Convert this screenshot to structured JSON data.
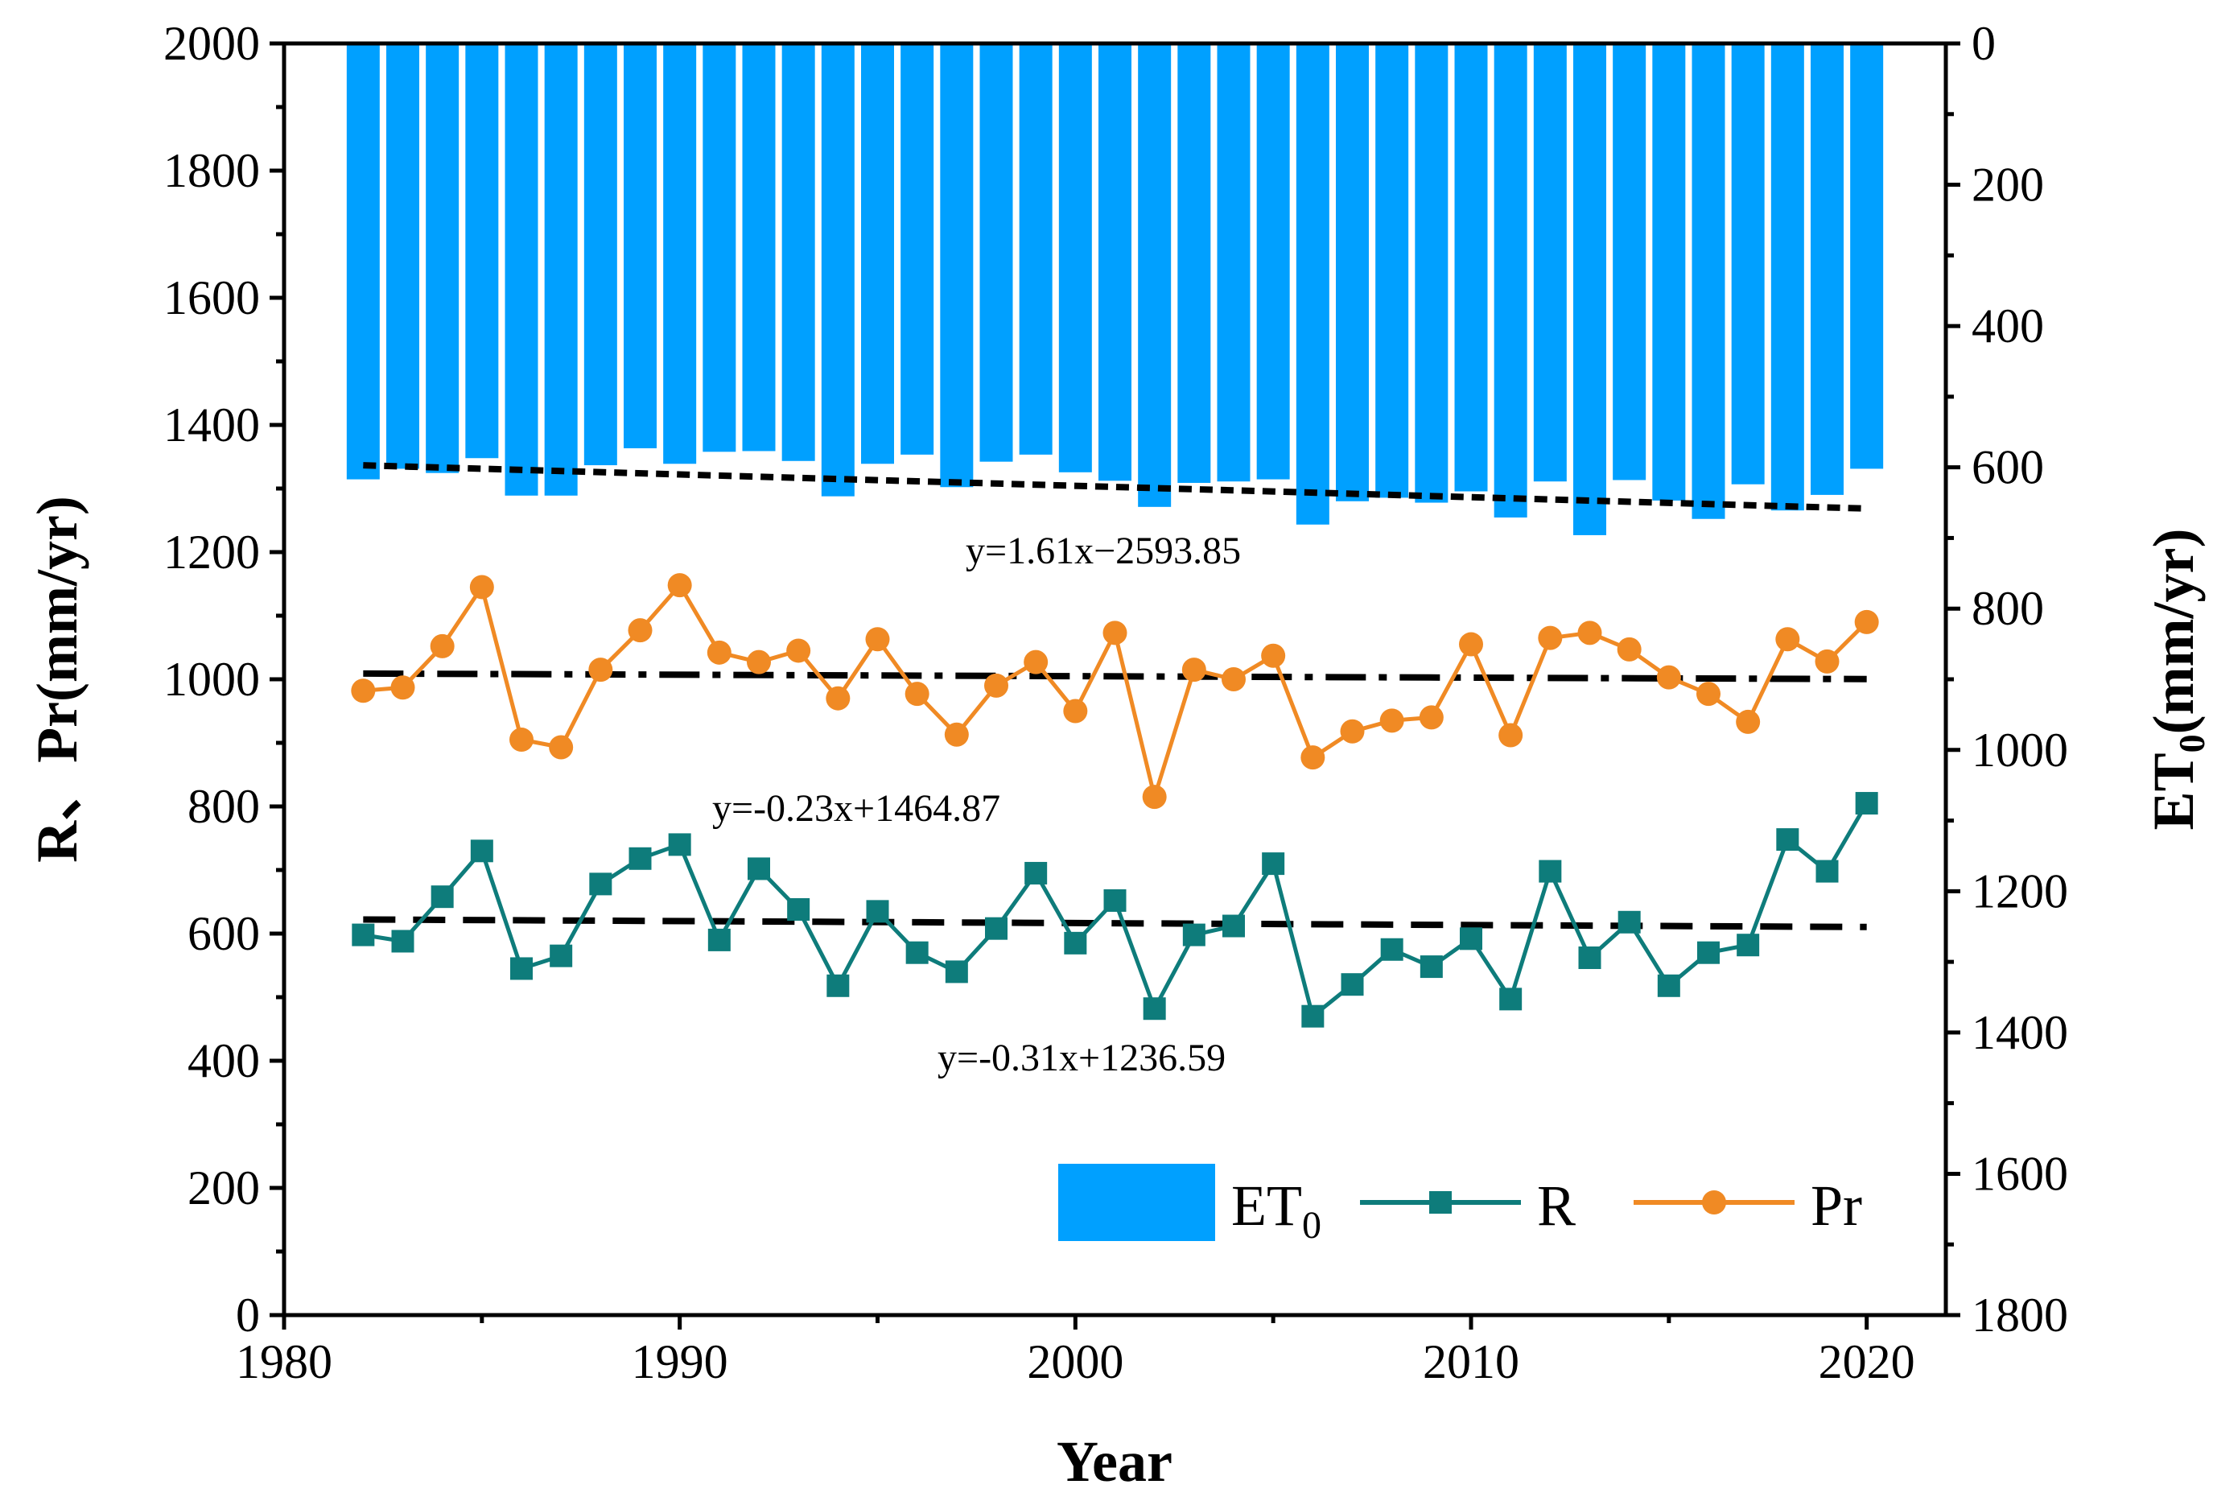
{
  "chart_data": {
    "type": "bar+line",
    "title": "",
    "xlabel": "Year",
    "ylabel_left": "R、Pr(mm/yr)",
    "ylabel_right": {
      "main": "ET",
      "sub": "0",
      "unit": "(mm/yr)"
    },
    "xlim": [
      1980,
      2022
    ],
    "xticks": [
      1980,
      1990,
      2000,
      2010,
      2020
    ],
    "ylim_left": [
      0,
      2000
    ],
    "yticks_left": [
      0,
      200,
      400,
      600,
      800,
      1000,
      1200,
      1400,
      1600,
      1800,
      2000
    ],
    "ylim_right": [
      0,
      1800
    ],
    "right_axis_inverted": true,
    "yticks_right": [
      0,
      200,
      400,
      600,
      800,
      1000,
      1200,
      1400,
      1600,
      1800
    ],
    "grid": false,
    "legend_position": "bottom-right",
    "years": [
      1982,
      1983,
      1984,
      1985,
      1986,
      1987,
      1988,
      1989,
      1990,
      1991,
      1992,
      1993,
      1994,
      1995,
      1996,
      1997,
      1998,
      1999,
      2000,
      2001,
      2002,
      2003,
      2004,
      2005,
      2006,
      2007,
      2008,
      2009,
      2010,
      2011,
      2012,
      2013,
      2014,
      2015,
      2016,
      2017,
      2018,
      2019,
      2020
    ],
    "series": [
      {
        "name": "ET",
        "name_sub": "0",
        "kind": "bar",
        "axis": "right",
        "color": "#00a0ff",
        "values": [
          617,
          602,
          608,
          587,
          640,
          640,
          597,
          573,
          595,
          578,
          577,
          591,
          641,
          595,
          582,
          628,
          592,
          582,
          607,
          619,
          656,
          622,
          620,
          617,
          681,
          648,
          643,
          650,
          634,
          671,
          620,
          696,
          618,
          647,
          673,
          624,
          661,
          639,
          602
        ]
      },
      {
        "name": "R",
        "kind": "line",
        "marker": "square",
        "axis": "left",
        "color": "#0e7c7b",
        "values": [
          598,
          588,
          658,
          730,
          545,
          565,
          678,
          718,
          740,
          590,
          702,
          638,
          518,
          635,
          570,
          540,
          608,
          695,
          585,
          652,
          482,
          598,
          612,
          710,
          470,
          520,
          575,
          548,
          592,
          497,
          698,
          562,
          618,
          518,
          570,
          582,
          748,
          698,
          805
        ]
      },
      {
        "name": "Pr",
        "kind": "line",
        "marker": "circle",
        "axis": "left",
        "color": "#f08a24",
        "values": [
          982,
          987,
          1052,
          1145,
          905,
          893,
          1015,
          1077,
          1148,
          1042,
          1027,
          1045,
          970,
          1063,
          977,
          913,
          990,
          1027,
          950,
          1073,
          815,
          1015,
          1000,
          1037,
          877,
          918,
          935,
          940,
          1055,
          912,
          1065,
          1073,
          1047,
          1003,
          977,
          933,
          1063,
          1028,
          1090
        ]
      }
    ],
    "trendlines": [
      {
        "series": "ET",
        "equation": "y=1.61x−2593.85",
        "slope": 1.61,
        "intercept": -2593.85,
        "axis": "right",
        "style": "short-dash"
      },
      {
        "series": "Pr",
        "equation": "y=-0.23x+1464.87",
        "slope": -0.23,
        "intercept": 1464.87,
        "axis": "left",
        "style": "dash-dot"
      },
      {
        "series": "R",
        "equation": "y=-0.31x+1236.59",
        "slope": -0.31,
        "intercept": 1236.59,
        "axis": "left",
        "style": "long-dash"
      }
    ]
  }
}
